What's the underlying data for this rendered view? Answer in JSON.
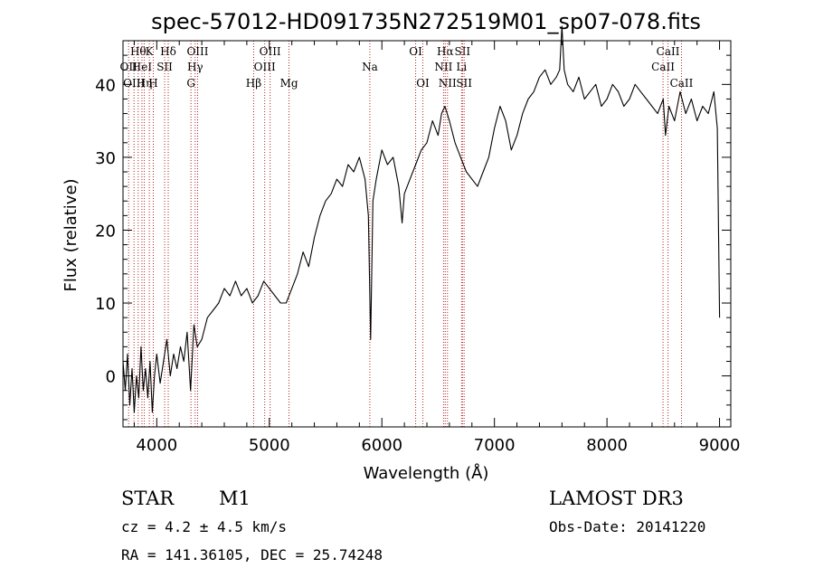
{
  "chart_data": {
    "type": "line",
    "title": "spec-57012-HD091735N272519M01_sp07-078.fits",
    "xlabel": "Wavelength (Å)",
    "ylabel": "Flux (relative)",
    "xlim": [
      3700,
      9100
    ],
    "ylim": [
      -7,
      46
    ],
    "xticks": [
      4000,
      5000,
      6000,
      7000,
      8000,
      9000
    ],
    "yticks": [
      0,
      10,
      20,
      30,
      40
    ],
    "series": [
      {
        "color": "#000000",
        "x": [
          3700,
          3720,
          3740,
          3760,
          3780,
          3800,
          3820,
          3840,
          3860,
          3880,
          3900,
          3920,
          3940,
          3960,
          3980,
          4000,
          4030,
          4060,
          4090,
          4120,
          4150,
          4180,
          4210,
          4240,
          4270,
          4300,
          4330,
          4360,
          4400,
          4450,
          4500,
          4550,
          4600,
          4650,
          4700,
          4750,
          4800,
          4850,
          4900,
          4950,
          5000,
          5050,
          5100,
          5150,
          5200,
          5250,
          5300,
          5350,
          5400,
          5450,
          5500,
          5550,
          5600,
          5650,
          5700,
          5750,
          5800,
          5850,
          5880,
          5900,
          5920,
          5950,
          6000,
          6050,
          6100,
          6150,
          6180,
          6200,
          6250,
          6300,
          6350,
          6400,
          6450,
          6500,
          6530,
          6560,
          6600,
          6650,
          6700,
          6750,
          6800,
          6850,
          6900,
          6950,
          7000,
          7050,
          7100,
          7150,
          7200,
          7250,
          7300,
          7350,
          7400,
          7450,
          7500,
          7550,
          7580,
          7600,
          7620,
          7650,
          7700,
          7750,
          7800,
          7850,
          7900,
          7950,
          8000,
          8050,
          8100,
          8150,
          8200,
          8250,
          8300,
          8350,
          8400,
          8450,
          8500,
          8520,
          8550,
          8600,
          8650,
          8700,
          8750,
          8800,
          8850,
          8900,
          8950,
          8980,
          9000
        ],
        "values": [
          2,
          -2,
          3,
          -4,
          1,
          -5,
          0,
          -3,
          4,
          -2,
          1,
          -3,
          2,
          -5,
          0,
          3,
          -1,
          2,
          5,
          0,
          3,
          1,
          4,
          2,
          6,
          -2,
          7,
          4,
          5,
          8,
          9,
          10,
          12,
          11,
          13,
          11,
          12,
          10,
          11,
          13,
          12,
          11,
          10,
          10,
          12,
          14,
          17,
          15,
          19,
          22,
          24,
          25,
          27,
          26,
          29,
          28,
          30,
          27,
          22,
          5,
          24,
          27,
          31,
          29,
          30,
          26,
          21,
          25,
          27,
          29,
          31,
          32,
          35,
          33,
          36,
          37,
          35,
          32,
          30,
          28,
          27,
          26,
          28,
          30,
          34,
          37,
          35,
          31,
          33,
          36,
          38,
          39,
          41,
          42,
          40,
          41,
          42,
          48,
          42,
          40,
          39,
          41,
          38,
          39,
          40,
          37,
          38,
          40,
          39,
          37,
          38,
          40,
          39,
          38,
          37,
          36,
          38,
          33,
          37,
          35,
          39,
          36,
          38,
          35,
          37,
          36,
          39,
          34,
          8
        ]
      }
    ],
    "line_markers": [
      {
        "wl": 3750,
        "row": 1,
        "label": "OII"
      },
      {
        "wl": 3798,
        "row": 2,
        "label": "OIII"
      },
      {
        "wl": 3835,
        "row": 0,
        "label": "Hθ"
      },
      {
        "wl": 3868,
        "row": 1,
        "label": "HeI"
      },
      {
        "wl": 3889,
        "row": 2,
        "label": "Hη"
      },
      {
        "wl": 3934,
        "row": 0,
        "label": "K"
      },
      {
        "wl": 3969,
        "row": 2,
        "label": "H"
      },
      {
        "wl": 4070,
        "row": 1,
        "label": "SII"
      },
      {
        "wl": 4102,
        "row": 0,
        "label": "Hδ"
      },
      {
        "wl": 4304,
        "row": 2,
        "label": "G"
      },
      {
        "wl": 4341,
        "row": 1,
        "label": "Hγ"
      },
      {
        "wl": 4363,
        "row": 0,
        "label": "OIII"
      },
      {
        "wl": 4861,
        "row": 2,
        "label": "Hβ"
      },
      {
        "wl": 4959,
        "row": 1,
        "label": "OIII"
      },
      {
        "wl": 5007,
        "row": 0,
        "label": "OIII"
      },
      {
        "wl": 5175,
        "row": 2,
        "label": "Mg"
      },
      {
        "wl": 5893,
        "row": 1,
        "label": "Na"
      },
      {
        "wl": 6300,
        "row": 0,
        "label": "OI"
      },
      {
        "wl": 6364,
        "row": 2,
        "label": "OI"
      },
      {
        "wl": 6548,
        "row": 1,
        "label": "NII"
      },
      {
        "wl": 6563,
        "row": 0,
        "label": "Hα"
      },
      {
        "wl": 6583,
        "row": 2,
        "label": "NII"
      },
      {
        "wl": 6708,
        "row": 1,
        "label": "Li"
      },
      {
        "wl": 6716,
        "row": 0,
        "label": "SII"
      },
      {
        "wl": 6731,
        "row": 2,
        "label": "SII"
      },
      {
        "wl": 8498,
        "row": 1,
        "label": "CaII"
      },
      {
        "wl": 8542,
        "row": 0,
        "label": "CaII"
      },
      {
        "wl": 8662,
        "row": 2,
        "label": "CaII"
      }
    ]
  },
  "footer": {
    "object_type": "STAR",
    "subclass": "M1",
    "survey": "LAMOST DR3",
    "cz": "cz = 4.2 ± 4.5 km/s",
    "obs_date": "Obs-Date: 20141220",
    "coords": "RA = 141.36105, DEC =  25.74248"
  }
}
